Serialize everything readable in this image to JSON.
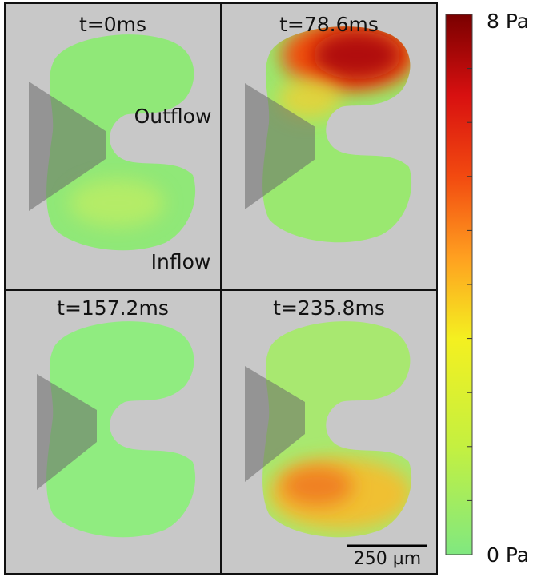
{
  "panels": [
    {
      "title": "t=0ms"
    },
    {
      "title": "t=78.6ms"
    },
    {
      "title": "t=157.2ms"
    },
    {
      "title": "t=235.8ms"
    }
  ],
  "labels": {
    "outflow": "Outflow",
    "inflow": "Inflow"
  },
  "scale_bar": "250 µm",
  "colorbar": {
    "max_label": "8 Pa",
    "min_label": "0 Pa"
  }
}
